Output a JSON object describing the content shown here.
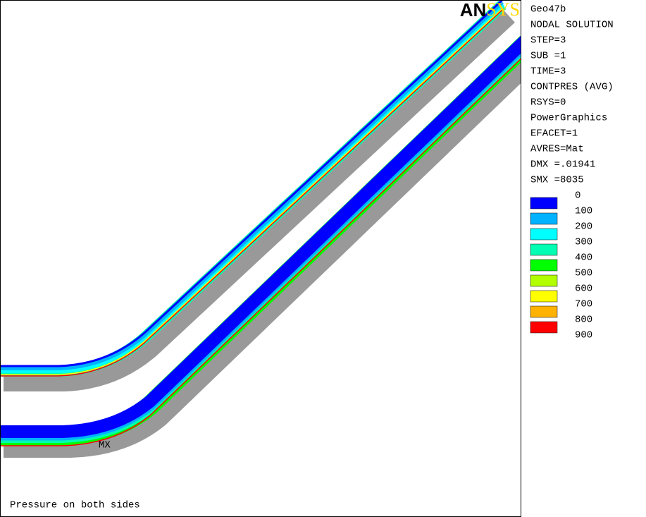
{
  "logo": {
    "left": "AN",
    "right": "SYS"
  },
  "info": [
    "Geo47b",
    "NODAL SOLUTION",
    "STEP=3",
    "SUB =1",
    "TIME=3",
    "CONTPRES (AVG)",
    "RSYS=0",
    "PowerGraphics",
    "EFACET=1",
    "AVRES=Mat",
    "DMX =.01941",
    "SMX =8035"
  ],
  "legend": {
    "levels": [
      0,
      100,
      200,
      300,
      400,
      500,
      600,
      700,
      800,
      900
    ],
    "colors": [
      "#0000ff",
      "#00b2ff",
      "#00ffff",
      "#00ffb2",
      "#00ff00",
      "#b2ff00",
      "#ffff00",
      "#ffb200",
      "#ff0000"
    ]
  },
  "plot": {
    "marker": "MX",
    "caption": "Pressure on both sides"
  }
}
